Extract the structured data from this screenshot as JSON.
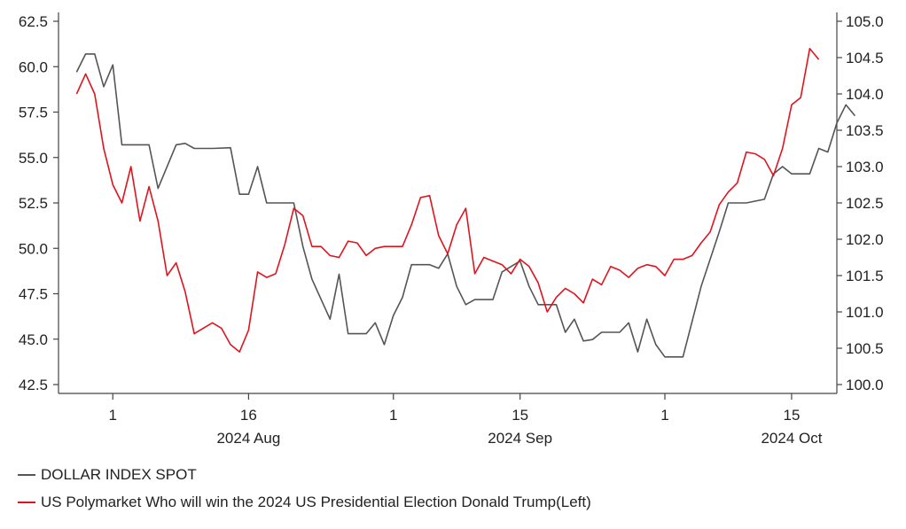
{
  "chart_data": {
    "type": "line",
    "title": "",
    "xlabel": "",
    "left_axis": {
      "ylim": [
        42.5,
        62.5
      ],
      "ticks": [
        "42.5",
        "45.0",
        "47.5",
        "50.0",
        "52.5",
        "55.0",
        "57.5",
        "60.0",
        "62.5"
      ]
    },
    "right_axis": {
      "ylim": [
        100.0,
        105.0
      ],
      "ticks": [
        "100.0",
        "100.5",
        "101.0",
        "101.5",
        "102.0",
        "102.5",
        "103.0",
        "103.5",
        "104.0",
        "104.5",
        "105.0"
      ]
    },
    "x_ticks": [
      {
        "date": "2024-08-01",
        "label": "1"
      },
      {
        "date": "2024-08-16",
        "label": "16"
      },
      {
        "date": "2024-09-01",
        "label": "1"
      },
      {
        "date": "2024-09-15",
        "label": "15"
      },
      {
        "date": "2024-10-01",
        "label": "1"
      },
      {
        "date": "2024-10-15",
        "label": "15"
      }
    ],
    "x_month_labels": [
      {
        "date": "2024-08-16",
        "label": "2024 Aug"
      },
      {
        "date": "2024-09-15",
        "label": "2024 Sep"
      },
      {
        "date": "2024-10-15",
        "label": "2024 Oct"
      }
    ],
    "grid": false,
    "legend_position": "bottom-left",
    "series": [
      {
        "name": "DOLLAR INDEX SPOT",
        "axis": "right",
        "color": "#555555",
        "points": [
          [
            "2024-07-28",
            104.3
          ],
          [
            "2024-07-29",
            104.55
          ],
          [
            "2024-07-30",
            104.55
          ],
          [
            "2024-07-31",
            104.1
          ],
          [
            "2024-08-01",
            104.4
          ],
          [
            "2024-08-02",
            103.3
          ],
          [
            "2024-08-05",
            103.3
          ],
          [
            "2024-08-06",
            102.7
          ],
          [
            "2024-08-08",
            103.3
          ],
          [
            "2024-08-09",
            103.32
          ],
          [
            "2024-08-10",
            103.25
          ],
          [
            "2024-08-12",
            103.25
          ],
          [
            "2024-08-14",
            103.26
          ],
          [
            "2024-08-15",
            102.62
          ],
          [
            "2024-08-16",
            102.62
          ],
          [
            "2024-08-17",
            103.0
          ],
          [
            "2024-08-18",
            102.5
          ],
          [
            "2024-08-21",
            102.5
          ],
          [
            "2024-08-22",
            101.9
          ],
          [
            "2024-08-23",
            101.45
          ],
          [
            "2024-08-25",
            100.9
          ],
          [
            "2024-08-26",
            101.52
          ],
          [
            "2024-08-27",
            100.7
          ],
          [
            "2024-08-29",
            100.7
          ],
          [
            "2024-08-30",
            100.85
          ],
          [
            "2024-08-31",
            100.55
          ],
          [
            "2024-09-01",
            100.95
          ],
          [
            "2024-09-02",
            101.2
          ],
          [
            "2024-09-03",
            101.65
          ],
          [
            "2024-09-05",
            101.65
          ],
          [
            "2024-09-06",
            101.6
          ],
          [
            "2024-09-07",
            101.8
          ],
          [
            "2024-09-08",
            101.35
          ],
          [
            "2024-09-09",
            101.1
          ],
          [
            "2024-09-10",
            101.17
          ],
          [
            "2024-09-12",
            101.17
          ],
          [
            "2024-09-13",
            101.55
          ],
          [
            "2024-09-15",
            101.7
          ],
          [
            "2024-09-16",
            101.35
          ],
          [
            "2024-09-17",
            101.1
          ],
          [
            "2024-09-19",
            101.1
          ],
          [
            "2024-09-20",
            100.72
          ],
          [
            "2024-09-21",
            100.9
          ],
          [
            "2024-09-22",
            100.6
          ],
          [
            "2024-09-23",
            100.62
          ],
          [
            "2024-09-24",
            100.72
          ],
          [
            "2024-09-26",
            100.72
          ],
          [
            "2024-09-27",
            100.85
          ],
          [
            "2024-09-28",
            100.45
          ],
          [
            "2024-09-29",
            100.9
          ],
          [
            "2024-09-30",
            100.55
          ],
          [
            "2024-10-01",
            100.38
          ],
          [
            "2024-10-03",
            100.38
          ],
          [
            "2024-10-05",
            101.35
          ],
          [
            "2024-10-07",
            102.1
          ],
          [
            "2024-10-08",
            102.5
          ],
          [
            "2024-10-10",
            102.5
          ],
          [
            "2024-10-12",
            102.55
          ],
          [
            "2024-10-13",
            102.9
          ],
          [
            "2024-10-14",
            103.0
          ],
          [
            "2024-10-15",
            102.9
          ],
          [
            "2024-10-17",
            102.9
          ],
          [
            "2024-10-18",
            103.25
          ],
          [
            "2024-10-19",
            103.2
          ],
          [
            "2024-10-20",
            103.6
          ],
          [
            "2024-10-21",
            103.85
          ],
          [
            "2024-10-22",
            103.7
          ]
        ]
      },
      {
        "name": "US Polymarket Who will win the 2024 US Presidential Election Donald Trump(Left)",
        "axis": "left",
        "color": "#e0141e",
        "points": [
          [
            "2024-07-28",
            58.5
          ],
          [
            "2024-07-29",
            59.6
          ],
          [
            "2024-07-30",
            58.5
          ],
          [
            "2024-07-31",
            55.5
          ],
          [
            "2024-08-01",
            53.5
          ],
          [
            "2024-08-02",
            52.5
          ],
          [
            "2024-08-03",
            54.5
          ],
          [
            "2024-08-04",
            51.5
          ],
          [
            "2024-08-05",
            53.4
          ],
          [
            "2024-08-06",
            51.5
          ],
          [
            "2024-08-07",
            48.5
          ],
          [
            "2024-08-08",
            49.2
          ],
          [
            "2024-08-09",
            47.6
          ],
          [
            "2024-08-10",
            45.3
          ],
          [
            "2024-08-11",
            45.6
          ],
          [
            "2024-08-12",
            45.9
          ],
          [
            "2024-08-13",
            45.6
          ],
          [
            "2024-08-14",
            44.7
          ],
          [
            "2024-08-15",
            44.3
          ],
          [
            "2024-08-16",
            45.5
          ],
          [
            "2024-08-17",
            48.7
          ],
          [
            "2024-08-18",
            48.4
          ],
          [
            "2024-08-19",
            48.6
          ],
          [
            "2024-08-20",
            50.2
          ],
          [
            "2024-08-21",
            52.2
          ],
          [
            "2024-08-22",
            51.8
          ],
          [
            "2024-08-23",
            50.1
          ],
          [
            "2024-08-24",
            50.1
          ],
          [
            "2024-08-25",
            49.6
          ],
          [
            "2024-08-26",
            49.5
          ],
          [
            "2024-08-27",
            50.4
          ],
          [
            "2024-08-28",
            50.3
          ],
          [
            "2024-08-29",
            49.6
          ],
          [
            "2024-08-30",
            50.0
          ],
          [
            "2024-08-31",
            50.1
          ],
          [
            "2024-09-01",
            50.1
          ],
          [
            "2024-09-02",
            50.1
          ],
          [
            "2024-09-03",
            51.3
          ],
          [
            "2024-09-04",
            52.8
          ],
          [
            "2024-09-05",
            52.9
          ],
          [
            "2024-09-06",
            50.7
          ],
          [
            "2024-09-07",
            49.7
          ],
          [
            "2024-09-08",
            51.3
          ],
          [
            "2024-09-09",
            52.2
          ],
          [
            "2024-09-10",
            48.6
          ],
          [
            "2024-09-11",
            49.5
          ],
          [
            "2024-09-12",
            49.3
          ],
          [
            "2024-09-13",
            49.1
          ],
          [
            "2024-09-14",
            48.6
          ],
          [
            "2024-09-15",
            49.4
          ],
          [
            "2024-09-16",
            49.0
          ],
          [
            "2024-09-17",
            48.1
          ],
          [
            "2024-09-18",
            46.5
          ],
          [
            "2024-09-19",
            47.3
          ],
          [
            "2024-09-20",
            47.8
          ],
          [
            "2024-09-21",
            47.5
          ],
          [
            "2024-09-22",
            47.0
          ],
          [
            "2024-09-23",
            48.3
          ],
          [
            "2024-09-24",
            48.0
          ],
          [
            "2024-09-25",
            49.0
          ],
          [
            "2024-09-26",
            48.8
          ],
          [
            "2024-09-27",
            48.4
          ],
          [
            "2024-09-28",
            48.9
          ],
          [
            "2024-09-29",
            49.1
          ],
          [
            "2024-09-30",
            49.0
          ],
          [
            "2024-10-01",
            48.5
          ],
          [
            "2024-10-02",
            49.4
          ],
          [
            "2024-10-03",
            49.4
          ],
          [
            "2024-10-04",
            49.6
          ],
          [
            "2024-10-05",
            50.3
          ],
          [
            "2024-10-06",
            50.9
          ],
          [
            "2024-10-07",
            52.4
          ],
          [
            "2024-10-08",
            53.1
          ],
          [
            "2024-10-09",
            53.6
          ],
          [
            "2024-10-10",
            55.3
          ],
          [
            "2024-10-11",
            55.2
          ],
          [
            "2024-10-12",
            54.9
          ],
          [
            "2024-10-13",
            54.0
          ],
          [
            "2024-10-14",
            55.5
          ],
          [
            "2024-10-15",
            57.9
          ],
          [
            "2024-10-16",
            58.3
          ],
          [
            "2024-10-17",
            61.0
          ],
          [
            "2024-10-18",
            60.4
          ]
        ]
      }
    ]
  }
}
